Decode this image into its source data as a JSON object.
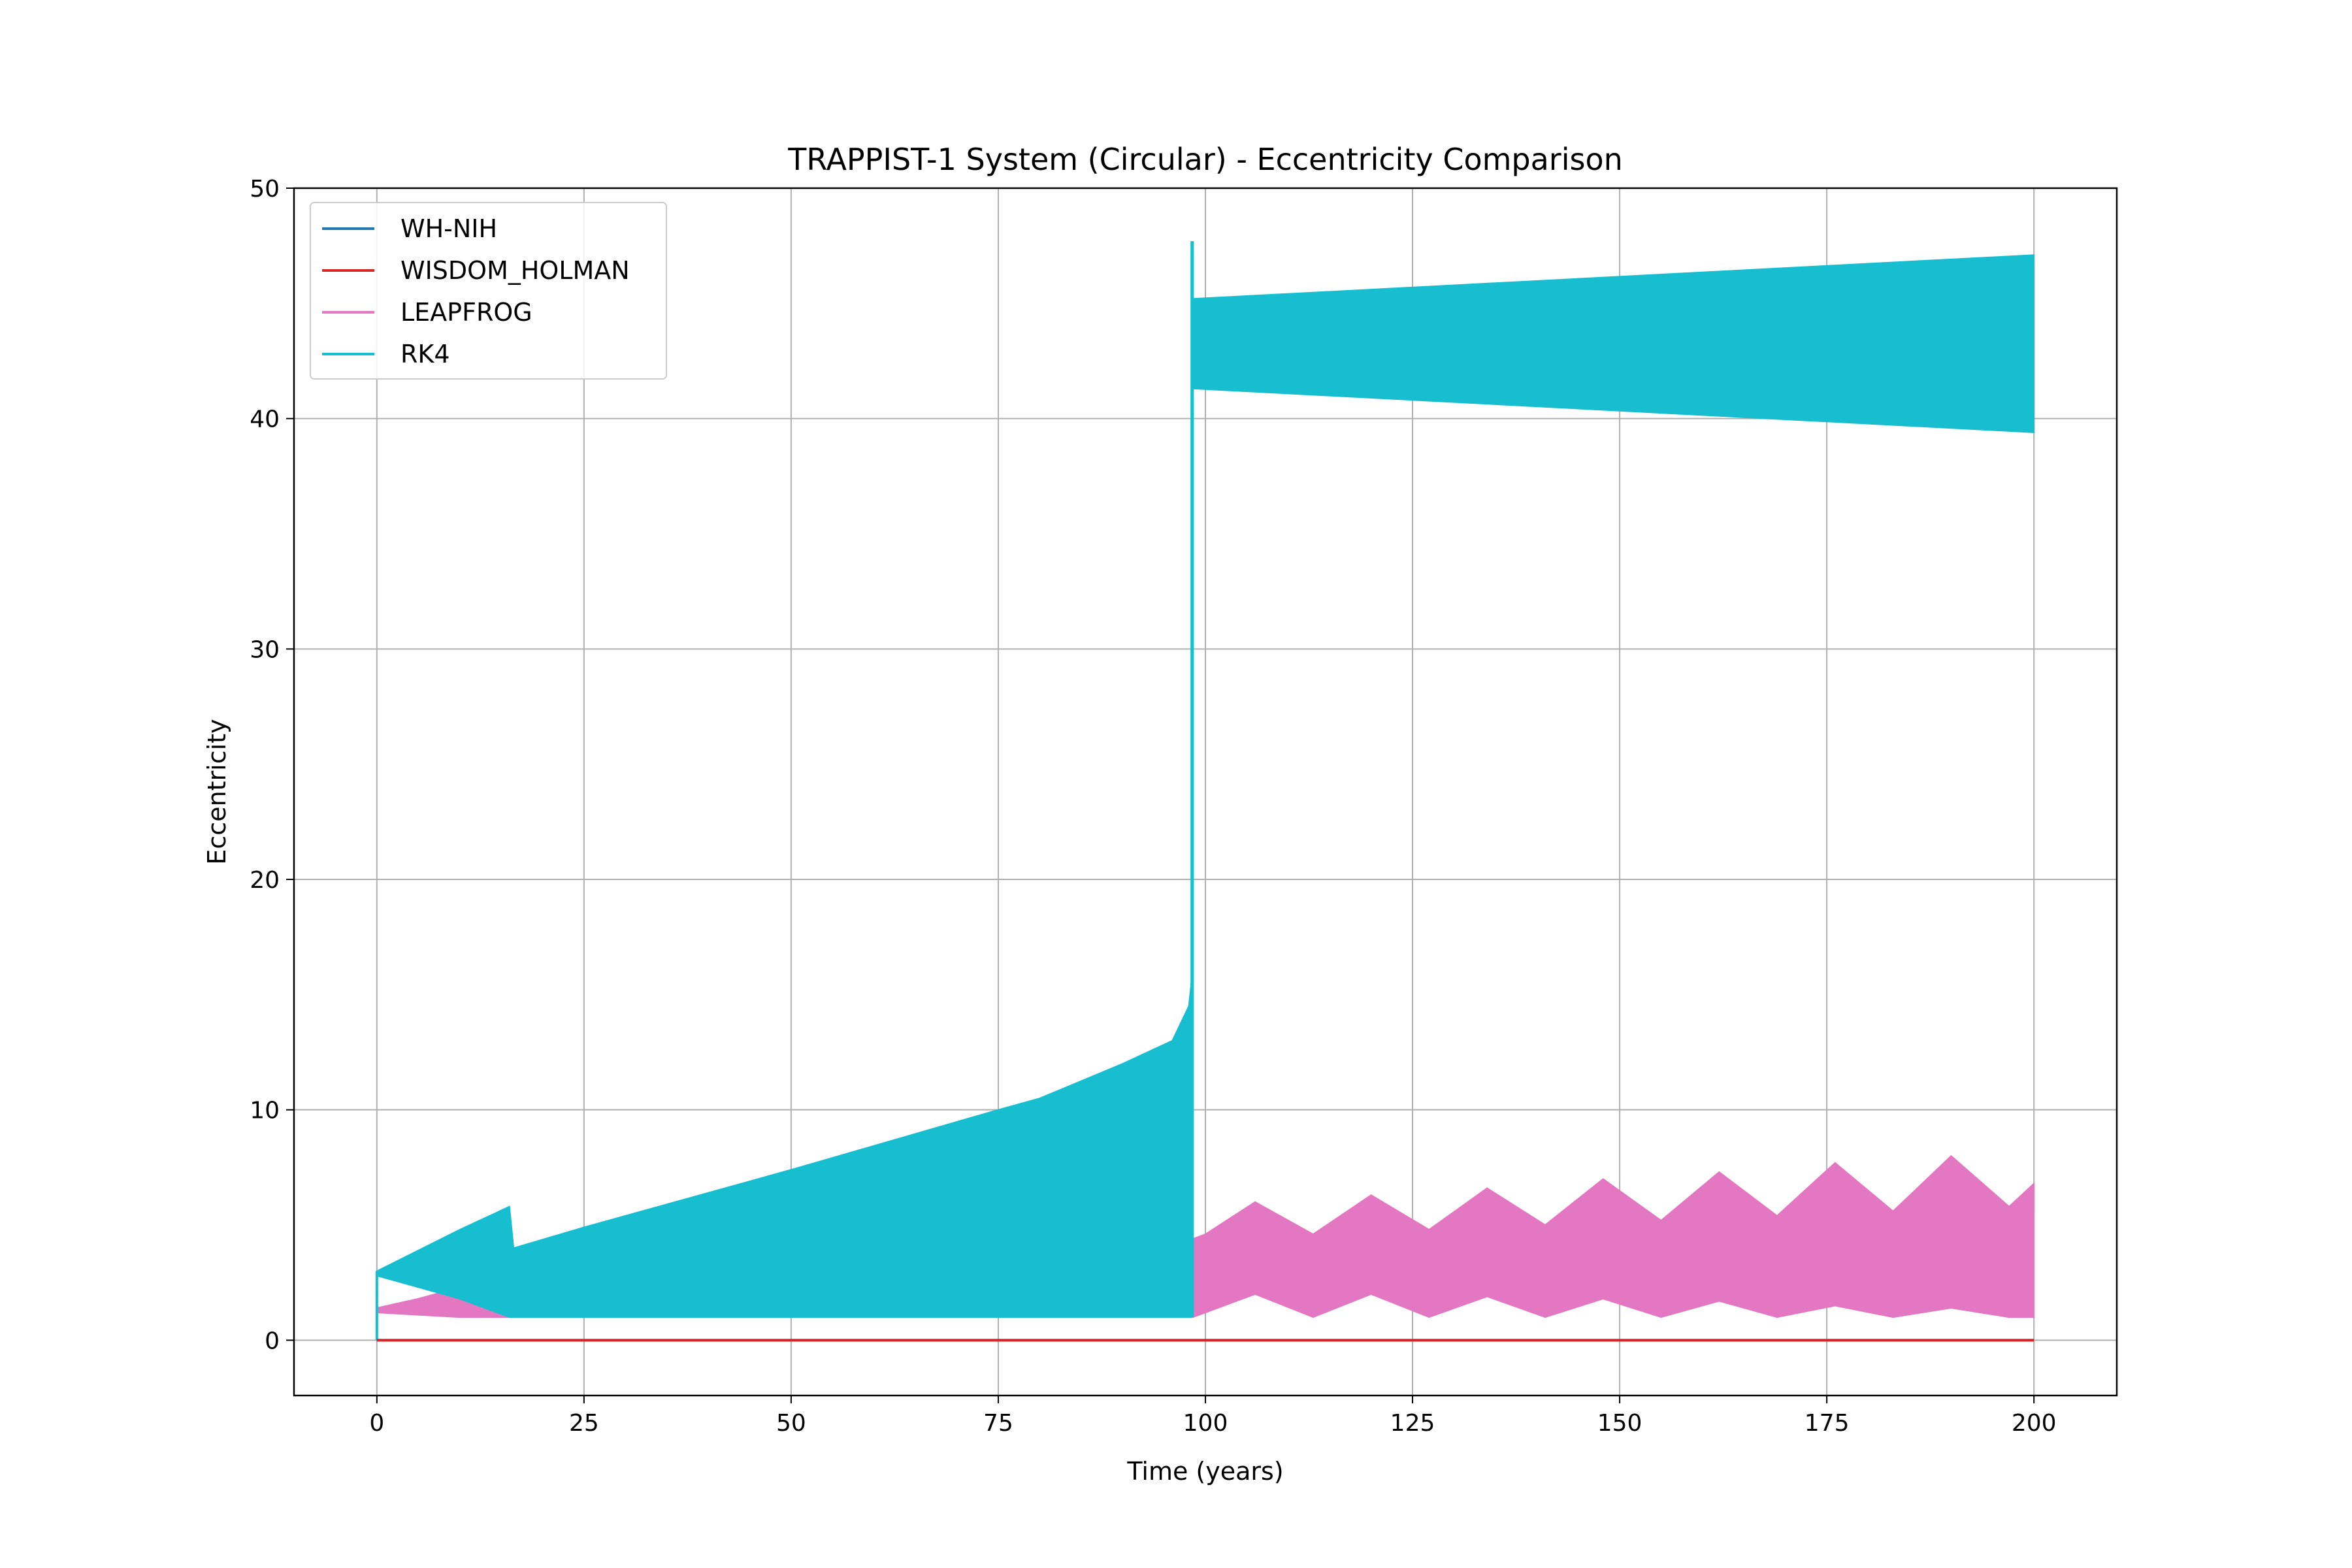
{
  "chart_data": {
    "type": "line",
    "title": "TRAPPIST-1 System (Circular) - Eccentricity Comparison",
    "xlabel": "Time (years)",
    "ylabel": "Eccentricity",
    "xlim": [
      -10,
      210
    ],
    "ylim": [
      -2.4,
      50
    ],
    "xticks": [
      0,
      25,
      50,
      75,
      100,
      125,
      150,
      175,
      200
    ],
    "yticks": [
      0,
      10,
      20,
      30,
      40,
      50
    ],
    "grid": true,
    "legend_position": "top-left",
    "series": [
      {
        "name": "WH-NIH",
        "color": "#1f77b4",
        "style": "line",
        "x": [
          0,
          200
        ],
        "y": [
          0,
          0
        ]
      },
      {
        "name": "WISDOM_HOLMAN",
        "color": "#d62728",
        "style": "line",
        "x": [
          0,
          200
        ],
        "y": [
          0,
          0
        ]
      },
      {
        "name": "LEAPFROG",
        "color": "#e377c2",
        "style": "band",
        "x": [
          0,
          5,
          10,
          16,
          25,
          50,
          75,
          98.5,
          100,
          106,
          113,
          120,
          127,
          134,
          141,
          148,
          155,
          162,
          169,
          176,
          183,
          190,
          197,
          200
        ],
        "upper": [
          1.4,
          1.8,
          2.3,
          2.4,
          2.0,
          2.0,
          2.0,
          4.4,
          4.6,
          6.0,
          4.6,
          6.3,
          4.8,
          6.6,
          5.0,
          7.0,
          5.2,
          7.3,
          5.4,
          7.7,
          5.6,
          8.0,
          5.8,
          6.8
        ],
        "lower": [
          1.2,
          1.1,
          1.0,
          1.0,
          1.0,
          1.0,
          1.0,
          1.0,
          1.2,
          2.0,
          1.0,
          2.0,
          1.0,
          1.9,
          1.0,
          1.8,
          1.0,
          1.7,
          1.0,
          1.5,
          1.0,
          1.4,
          1.0,
          1.0
        ]
      },
      {
        "name": "RK4",
        "color": "#17becf",
        "style": "band",
        "x": [
          0,
          10,
          16,
          16.5,
          25,
          50,
          75,
          80,
          90,
          96,
          98,
          98.3
        ],
        "upper": [
          3.0,
          4.8,
          5.8,
          4.0,
          4.9,
          7.4,
          10.0,
          10.5,
          12.0,
          13.0,
          14.5,
          15.5
        ],
        "lower": [
          2.8,
          1.8,
          1.0,
          1.0,
          1.0,
          1.0,
          1.0,
          1.0,
          1.0,
          1.0,
          1.0,
          1.0
        ],
        "spike": {
          "x": 98.4,
          "y": 47.7
        },
        "band2": {
          "x": [
            98.5,
            200
          ],
          "upper": [
            45.2,
            47.1
          ],
          "lower": [
            41.3,
            39.4
          ]
        }
      }
    ]
  }
}
